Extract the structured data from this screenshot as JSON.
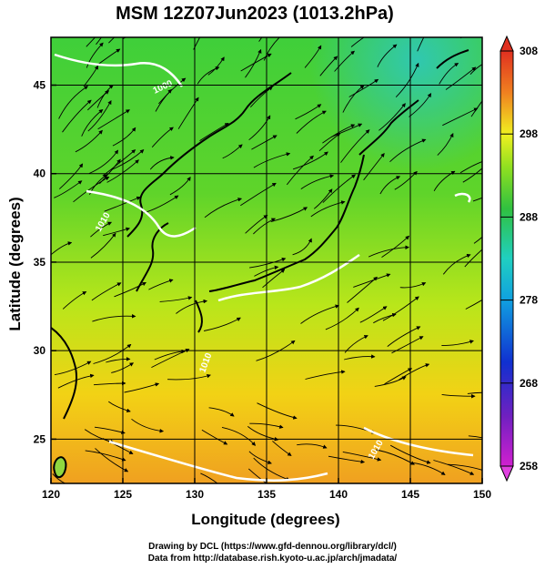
{
  "title": "MSM 12Z07Jun2023 (1013.2hPa)",
  "x_axis": {
    "label": "Longitude (degrees)",
    "ticks": [
      120,
      125,
      130,
      135,
      140,
      145,
      150
    ],
    "range": [
      120,
      150
    ]
  },
  "y_axis": {
    "label": "Latitude  (degrees)",
    "ticks": [
      25,
      30,
      35,
      40,
      45
    ],
    "range": [
      22.5,
      47.7
    ]
  },
  "colorbar": {
    "ticks": [
      258,
      268,
      278,
      288,
      298,
      308
    ],
    "range": [
      258,
      308
    ]
  },
  "contour_labels": [
    "1000",
    "1010",
    "1010",
    "1010"
  ],
  "credits": {
    "line1": "Drawing by DCL (https://www.gfd-dennou.org/library/dcl/)",
    "line2": "Data from http://database.rish.kyoto-u.ac.jp/arch/jmadata/"
  }
}
